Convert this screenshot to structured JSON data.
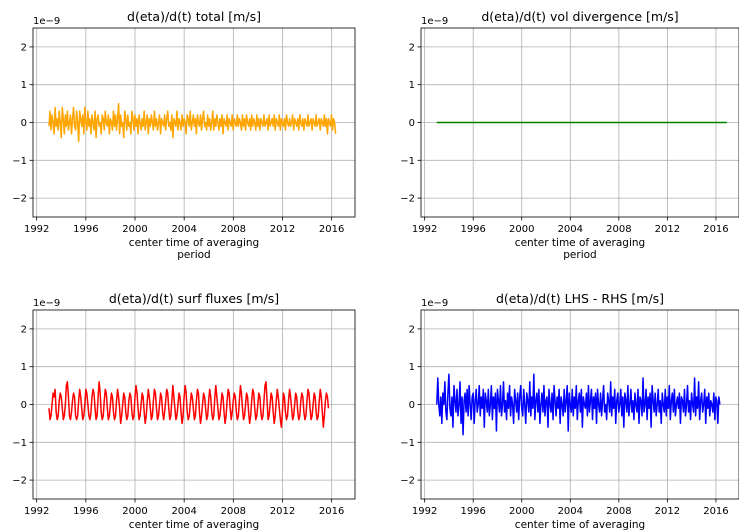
{
  "chart_data": [
    {
      "type": "line",
      "title": "d(eta)/d(t) total [m/s]",
      "xlabel": [
        "center time of averaging",
        "period"
      ],
      "ylabel": "",
      "y_offset_text": "1e−9",
      "x_ticks": [
        1992,
        1996,
        2000,
        2004,
        2008,
        2012,
        2016
      ],
      "y_ticks": [
        -2,
        -1,
        0,
        1,
        2
      ],
      "y_tick_labels": [
        "−2",
        "−1",
        "0",
        "1",
        "2"
      ],
      "xlim": [
        1991.7,
        2017.9
      ],
      "ylim": [
        -2.5,
        2.5
      ],
      "grid": true,
      "series": [
        {
          "color": "#ffa500",
          "x_start": 1993.0,
          "x_step": 0.0833,
          "values": [
            -0.1,
            0.3,
            -0.2,
            0.2,
            0.0,
            -0.3,
            0.4,
            -0.1,
            0.1,
            -0.2,
            0.3,
            0.0,
            -0.4,
            0.4,
            0.1,
            -0.3,
            0.2,
            -0.1,
            0.3,
            -0.2,
            0.0,
            0.2,
            -0.3,
            0.1,
            0.4,
            -0.1,
            -0.2,
            0.3,
            0.0,
            -0.5,
            0.3,
            0.1,
            -0.1,
            0.2,
            -0.3,
            0.4,
            0.0,
            -0.2,
            0.3,
            -0.1,
            0.1,
            -0.3,
            0.2,
            0.0,
            -0.2,
            0.3,
            -0.4,
            0.1,
            0.2,
            -0.1,
            0.0,
            -0.3,
            0.2,
            0.1,
            -0.2,
            0.3,
            0.0,
            -0.1,
            0.2,
            -0.3,
            0.1,
            0.0,
            -0.2,
            0.3,
            -0.1,
            0.2,
            -0.2,
            0.1,
            0.5,
            -0.3,
            0.2,
            -0.1,
            0.0,
            -0.4,
            0.3,
            0.1,
            -0.2,
            0.2,
            -0.1,
            0.0,
            -0.3,
            0.3,
            0.1,
            -0.2,
            0.2,
            -0.1,
            0.1,
            -0.3,
            0.2,
            0.0,
            -0.2,
            0.1,
            -0.1,
            0.3,
            -0.2,
            0.0,
            0.2,
            -0.3,
            0.1,
            -0.1,
            0.2,
            0.0,
            -0.2,
            0.3,
            -0.1,
            0.1,
            -0.2,
            0.0,
            0.2,
            -0.3,
            0.1,
            0.0,
            -0.1,
            0.2,
            -0.2,
            0.1,
            0.3,
            -0.1,
            0.0,
            -0.2,
            0.2,
            -0.4,
            0.1,
            0.0,
            -0.1,
            0.3,
            -0.2,
            0.1,
            0.0,
            -0.2,
            0.2,
            -0.1,
            0.1,
            0.0,
            -0.3,
            0.2,
            0.1,
            -0.1,
            0.3,
            -0.2,
            0.0,
            0.2,
            -0.1,
            0.1,
            -0.3,
            0.2,
            0.0,
            -0.1,
            0.2,
            -0.2,
            0.1,
            0.3,
            -0.1,
            0.0,
            -0.2,
            0.2,
            -0.1,
            0.1,
            -0.2,
            0.0,
            0.3,
            -0.2,
            0.1,
            -0.1,
            0.2,
            0.0,
            -0.2,
            0.1,
            -0.1,
            0.2,
            -0.3,
            0.1,
            0.0,
            -0.1,
            0.2,
            -0.2,
            0.1,
            0.0,
            -0.1,
            0.2,
            -0.2,
            0.1,
            0.0,
            -0.1,
            0.2,
            -0.1,
            0.1,
            0.0,
            -0.2,
            0.2,
            -0.1,
            0.1,
            -0.2,
            0.2,
            0.0,
            -0.1,
            0.1,
            -0.2,
            0.2,
            -0.1,
            0.1,
            0.0,
            -0.2,
            0.2,
            -0.1,
            0.1,
            -0.2,
            0.1,
            0.0,
            -0.1,
            0.2,
            -0.1,
            0.0,
            0.1,
            -0.2,
            0.2,
            -0.1,
            0.0,
            0.1,
            -0.1,
            0.2,
            -0.2,
            0.1,
            0.0,
            -0.1,
            0.2,
            -0.2,
            0.1,
            0.0,
            -0.1,
            0.1,
            -0.2,
            0.2,
            0.0,
            -0.1,
            0.1,
            -0.1,
            0.0,
            0.2,
            -0.2,
            0.1,
            0.0,
            -0.1,
            0.1,
            -0.2,
            0.2,
            0.0,
            -0.1,
            0.1,
            -0.2,
            0.1,
            0.0,
            -0.1,
            0.2,
            -0.1,
            0.0,
            0.1,
            -0.2,
            0.1,
            0.0,
            -0.1,
            0.2,
            -0.1,
            0.0,
            0.1,
            -0.2,
            0.1,
            0.0,
            -0.1,
            0.2,
            -0.1,
            0.1,
            -0.3,
            0.1,
            0.0,
            -0.1,
            0.2,
            -0.2,
            0.1,
            0.0,
            -0.3
          ]
        }
      ]
    },
    {
      "type": "line",
      "title": "d(eta)/d(t) vol divergence [m/s]",
      "xlabel": [
        "center time of averaging",
        "period"
      ],
      "ylabel": "",
      "y_offset_text": "1e−9",
      "x_ticks": [
        1992,
        1996,
        2000,
        2004,
        2008,
        2012,
        2016
      ],
      "y_ticks": [
        -2,
        -1,
        0,
        1,
        2
      ],
      "y_tick_labels": [
        "−2",
        "−1",
        "0",
        "1",
        "2"
      ],
      "xlim": [
        1991.7,
        2017.9
      ],
      "ylim": [
        -2.5,
        2.5
      ],
      "grid": true,
      "series": [
        {
          "color": "#008000",
          "x": [
            1993.0,
            2016.9
          ],
          "values": [
            0.0,
            0.0
          ]
        }
      ]
    },
    {
      "type": "line",
      "title": "d(eta)/d(t) surf fluxes [m/s]",
      "xlabel": [
        "center time of averaging"
      ],
      "ylabel": "",
      "y_offset_text": "1e−9",
      "x_ticks": [
        1992,
        1996,
        2000,
        2004,
        2008,
        2012,
        2016
      ],
      "y_ticks": [
        -2,
        -1,
        0,
        1,
        2
      ],
      "y_tick_labels": [
        "−2",
        "−1",
        "0",
        "1",
        "2"
      ],
      "xlim": [
        1991.7,
        2017.9
      ],
      "ylim": [
        -2.5,
        2.5
      ],
      "grid": true,
      "series": [
        {
          "color": "#ff0000",
          "x_start": 1993.0,
          "x_step": 0.0833,
          "values": [
            -0.1,
            -0.4,
            -0.3,
            0.0,
            0.3,
            0.2,
            0.4,
            -0.2,
            -0.4,
            -0.3,
            0.1,
            0.3,
            0.2,
            -0.1,
            -0.4,
            -0.3,
            0.0,
            0.5,
            0.6,
            0.2,
            -0.3,
            -0.4,
            -0.2,
            0.1,
            0.3,
            0.2,
            -0.3,
            -0.4,
            -0.3,
            0.1,
            0.4,
            0.2,
            -0.1,
            -0.4,
            -0.3,
            0.0,
            0.4,
            0.3,
            0.0,
            -0.3,
            -0.4,
            -0.2,
            0.2,
            0.4,
            0.3,
            -0.1,
            -0.4,
            -0.3,
            0.2,
            0.6,
            0.3,
            -0.2,
            -0.4,
            -0.3,
            0.1,
            0.4,
            0.3,
            -0.1,
            -0.4,
            -0.3,
            0.0,
            0.3,
            0.2,
            -0.2,
            -0.4,
            -0.3,
            0.1,
            0.4,
            0.2,
            -0.1,
            -0.5,
            -0.3,
            0.0,
            0.3,
            0.2,
            -0.2,
            -0.4,
            -0.3,
            0.1,
            0.3,
            0.2,
            -0.2,
            -0.4,
            -0.3,
            0.2,
            0.5,
            0.3,
            -0.1,
            -0.4,
            -0.3,
            0.0,
            0.3,
            0.2,
            -0.2,
            -0.5,
            -0.3,
            0.1,
            0.4,
            0.2,
            -0.1,
            -0.4,
            -0.3,
            0.1,
            0.4,
            0.3,
            -0.1,
            -0.4,
            -0.3,
            0.0,
            0.3,
            0.2,
            -0.2,
            -0.4,
            -0.2,
            0.1,
            0.4,
            0.3,
            -0.1,
            -0.4,
            -0.3,
            0.1,
            0.5,
            0.2,
            -0.1,
            -0.4,
            -0.3,
            0.0,
            0.3,
            0.2,
            -0.2,
            -0.5,
            -0.3,
            0.2,
            0.5,
            0.3,
            -0.2,
            -0.4,
            -0.3,
            0.0,
            0.3,
            0.2,
            -0.1,
            -0.4,
            -0.3,
            0.1,
            0.4,
            0.3,
            -0.2,
            -0.5,
            -0.3,
            0.0,
            0.3,
            0.2,
            -0.1,
            -0.4,
            -0.3,
            0.1,
            0.4,
            0.2,
            -0.2,
            -0.4,
            -0.3,
            0.2,
            0.5,
            0.2,
            -0.1,
            -0.4,
            -0.3,
            0.0,
            0.3,
            0.2,
            -0.2,
            -0.5,
            -0.3,
            0.1,
            0.4,
            0.3,
            -0.1,
            -0.4,
            -0.2,
            0.1,
            0.3,
            0.2,
            -0.2,
            -0.4,
            -0.3,
            0.1,
            0.5,
            0.3,
            -0.1,
            -0.4,
            -0.3,
            0.0,
            0.3,
            0.2,
            -0.2,
            -0.5,
            -0.3,
            0.1,
            0.4,
            0.3,
            -0.1,
            -0.4,
            -0.3,
            0.0,
            0.3,
            0.2,
            -0.2,
            -0.4,
            -0.3,
            0.1,
            0.5,
            0.6,
            0.1,
            -0.4,
            -0.3,
            0.0,
            0.3,
            0.2,
            -0.2,
            -0.5,
            -0.3,
            0.1,
            0.4,
            0.2,
            -0.1,
            -0.4,
            -0.6,
            -0.2,
            0.3,
            0.2,
            -0.2,
            -0.4,
            -0.3,
            0.1,
            0.4,
            0.2,
            -0.1,
            -0.4,
            -0.3,
            0.0,
            0.3,
            0.2,
            -0.2,
            -0.4,
            -0.3,
            0.1,
            0.3,
            0.2,
            -0.2,
            -0.4,
            -0.3,
            0.1,
            0.4,
            0.3,
            -0.1,
            -0.4,
            -0.3,
            0.0,
            0.3,
            0.2,
            -0.2,
            -0.4,
            -0.3,
            0.1,
            0.4,
            0.2,
            -0.2,
            -0.6,
            -0.3,
            0.1,
            0.3,
            0.2,
            -0.1
          ]
        }
      ]
    },
    {
      "type": "line",
      "title": "d(eta)/d(t) LHS - RHS [m/s]",
      "xlabel": [
        "center time of averaging"
      ],
      "ylabel": "",
      "y_offset_text": "1e−9",
      "x_ticks": [
        1992,
        1996,
        2000,
        2004,
        2008,
        2012,
        2016
      ],
      "y_ticks": [
        -2,
        -1,
        0,
        1,
        2
      ],
      "y_tick_labels": [
        "−2",
        "−1",
        "0",
        "1",
        "2"
      ],
      "xlim": [
        1991.7,
        2017.9
      ],
      "ylim": [
        -2.5,
        2.5
      ],
      "grid": true,
      "series": [
        {
          "color": "#0000ff",
          "x_start": 1993.0,
          "x_step": 0.0833,
          "values": [
            0.0,
            0.7,
            0.0,
            -0.3,
            0.2,
            -0.5,
            0.3,
            0.0,
            0.6,
            -0.2,
            -0.4,
            0.3,
            0.8,
            -0.1,
            -0.3,
            0.2,
            -0.6,
            0.5,
            0.1,
            -0.2,
            0.4,
            -0.3,
            0.0,
            0.6,
            -0.5,
            0.2,
            -0.8,
            0.1,
            0.3,
            -0.2,
            0.4,
            -0.3,
            0.5,
            0.0,
            -0.4,
            0.2,
            0.3,
            -0.5,
            0.1,
            0.4,
            -0.2,
            0.0,
            0.5,
            -0.3,
            0.2,
            -0.1,
            0.4,
            -0.6,
            0.3,
            0.1,
            -0.2,
            0.4,
            -0.3,
            0.0,
            0.5,
            -0.4,
            0.2,
            -0.1,
            0.3,
            -0.7,
            0.4,
            0.1,
            -0.2,
            0.5,
            -0.3,
            0.0,
            0.6,
            -0.2,
            0.1,
            -0.4,
            0.3,
            -0.1,
            0.5,
            -0.3,
            0.2,
            0.0,
            -0.5,
            0.4,
            0.1,
            -0.2,
            0.3,
            -0.4,
            0.2,
            0.5,
            -0.1,
            -0.3,
            0.4,
            0.0,
            -0.5,
            0.3,
            0.1,
            -0.2,
            0.6,
            -0.3,
            0.2,
            -0.1,
            0.8,
            -0.4,
            0.1,
            0.3,
            -0.2,
            0.4,
            -0.5,
            0.0,
            0.3,
            -0.2,
            0.5,
            -0.3,
            0.1,
            0.2,
            -0.6,
            0.4,
            0.0,
            -0.2,
            0.3,
            -0.4,
            0.5,
            0.1,
            -0.3,
            0.2,
            -0.1,
            0.4,
            -0.5,
            0.2,
            0.0,
            -0.3,
            0.4,
            -0.2,
            0.1,
            0.5,
            -0.7,
            0.3,
            0.0,
            -0.2,
            0.4,
            -0.3,
            0.2,
            -0.1,
            0.5,
            -0.4,
            0.1,
            0.3,
            -0.2,
            0.4,
            -0.6,
            0.2,
            0.0,
            -0.1,
            0.3,
            -0.3,
            0.5,
            -0.2,
            0.1,
            0.4,
            -0.4,
            0.2,
            -0.1,
            0.3,
            -0.5,
            0.4,
            0.0,
            -0.2,
            0.3,
            -0.3,
            0.1,
            0.5,
            -0.2,
            0.0,
            -0.4,
            0.3,
            0.1,
            -0.2,
            0.6,
            -0.3,
            0.2,
            -0.1,
            0.4,
            -0.5,
            0.1,
            0.3,
            -0.2,
            0.0,
            0.4,
            -0.3,
            0.2,
            -0.6,
            0.3,
            0.1,
            -0.2,
            0.5,
            -0.3,
            0.0,
            0.4,
            -0.2,
            0.1,
            -0.4,
            0.3,
            0.0,
            -0.2,
            0.4,
            -0.5,
            0.2,
            0.1,
            -0.3,
            0.7,
            -0.2,
            0.0,
            0.4,
            -0.4,
            0.2,
            -0.1,
            0.3,
            -0.6,
            0.5,
            0.1,
            -0.2,
            0.3,
            -0.3,
            0.0,
            0.4,
            -0.2,
            0.1,
            -0.5,
            0.3,
            0.0,
            -0.2,
            0.4,
            -0.3,
            0.2,
            -0.1,
            0.5,
            -0.4,
            0.1,
            0.3,
            -0.2,
            0.4,
            -0.3,
            0.0,
            0.2,
            -0.1,
            0.3,
            -0.5,
            0.2,
            0.1,
            -0.2,
            0.4,
            -0.3,
            0.0,
            0.5,
            -0.2,
            0.1,
            -0.4,
            0.3,
            0.0,
            -0.2,
            0.7,
            -0.3,
            0.2,
            -0.1,
            0.6,
            -0.4,
            0.1,
            0.3,
            -0.2,
            0.0,
            0.4,
            -0.5,
            0.2,
            -0.1,
            0.3,
            -0.3,
            0.1,
            0.0,
            -0.2,
            0.3,
            -0.4,
            0.2,
            0.1,
            -0.5,
            0.2,
            0.0
          ]
        }
      ]
    }
  ]
}
